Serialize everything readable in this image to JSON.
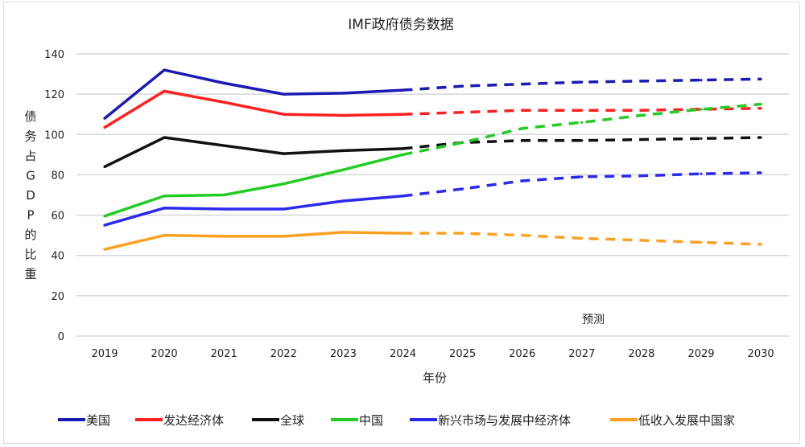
{
  "chart_data": {
    "type": "line",
    "title": "IMF政府债务数据",
    "xlabel": "年份",
    "ylabel": "债务占GDP的比重",
    "x": [
      "2019",
      "2020",
      "2021",
      "2022",
      "2023",
      "2024",
      "2025",
      "2026",
      "2027",
      "2028",
      "2029",
      "2030"
    ],
    "ylim": [
      0,
      140
    ],
    "yticks": [
      0,
      20,
      40,
      60,
      80,
      100,
      120,
      140
    ],
    "grid": true,
    "forecast_start": "2024",
    "annotations": [
      {
        "text": "预测",
        "x": "2027",
        "y": 8
      }
    ],
    "legend_position": "bottom",
    "series": [
      {
        "name": "美国",
        "color": "#1a1ab4",
        "values": [
          108,
          132,
          125.5,
          120,
          120.5,
          122,
          124,
          125,
          126,
          126.5,
          127,
          127.5
        ]
      },
      {
        "name": "发达经济体",
        "color": "#ff2020",
        "values": [
          103.5,
          121.5,
          116,
          110,
          109.5,
          110,
          111,
          112,
          112,
          112,
          112.5,
          113
        ]
      },
      {
        "name": "全球",
        "color": "#111111",
        "values": [
          84,
          98.5,
          94.5,
          90.5,
          92,
          93,
          96,
          97,
          97,
          97.5,
          98,
          98.5
        ]
      },
      {
        "name": "中国",
        "color": "#22cc22",
        "values": [
          59.5,
          69.5,
          70,
          75.5,
          82.5,
          90,
          96,
          103,
          106,
          109.5,
          112.5,
          115
        ]
      },
      {
        "name": "新兴市场与发展中经济体",
        "color": "#2a2aee",
        "values": [
          55,
          63.5,
          63,
          63,
          67,
          69.5,
          73,
          77,
          79,
          79.5,
          80.5,
          81
        ]
      },
      {
        "name": "低收入发展中国家",
        "color": "#ffa020",
        "values": [
          43,
          50,
          49.5,
          49.5,
          51.5,
          51,
          51,
          50,
          48.5,
          47.5,
          46.5,
          45.5
        ]
      }
    ]
  }
}
